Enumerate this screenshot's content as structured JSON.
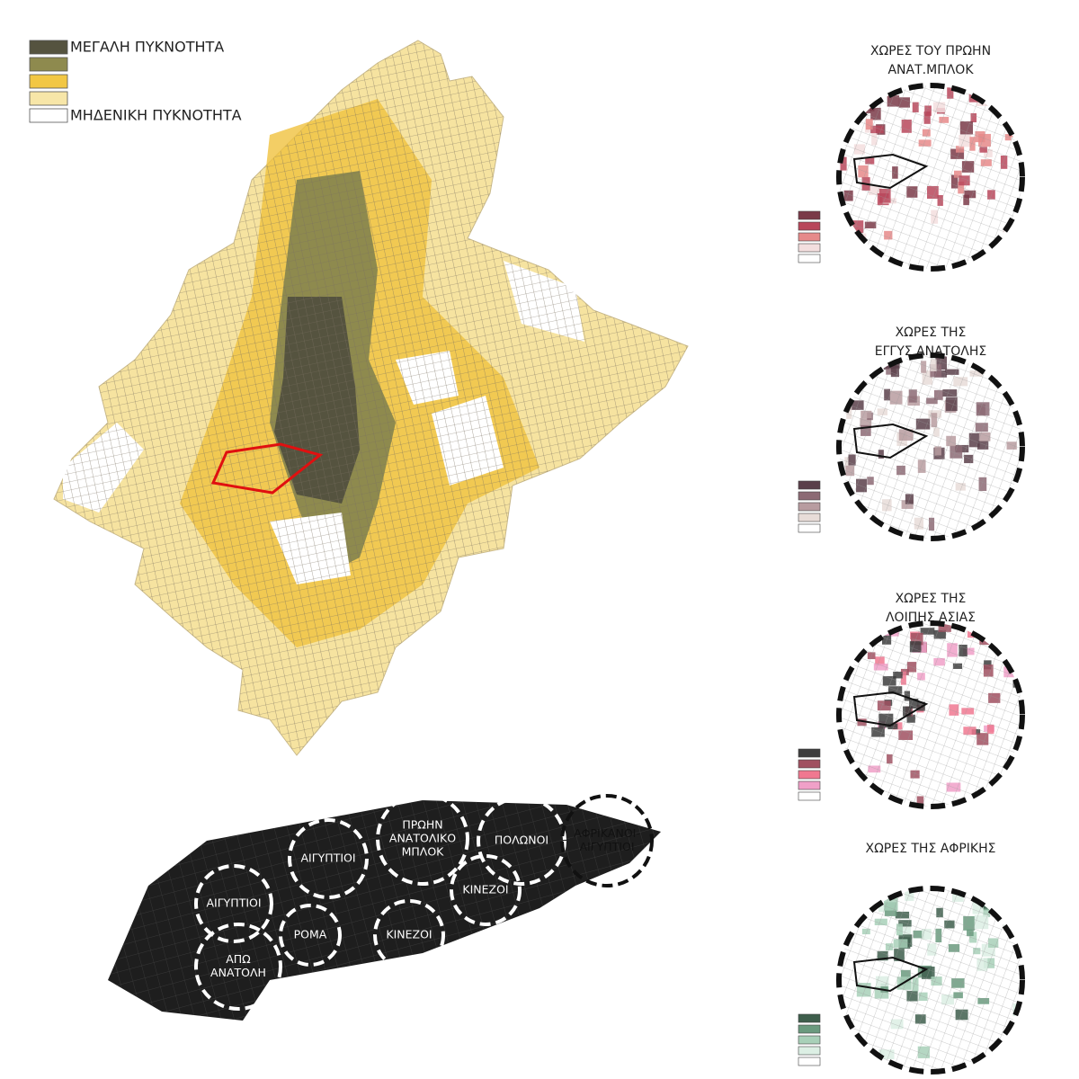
{
  "legend": {
    "items": [
      {
        "color": "#55533f",
        "label": "ΜΕΓΑΛΗ ΠΥΚΝΟΤΗΤΑ"
      },
      {
        "color": "#8e8a4e"
      },
      {
        "color": "#f2c744"
      },
      {
        "color": "#f7e6a8"
      },
      {
        "color": "#ffffff",
        "label": "ΜΗΔΕΝΙΚΗ ΠΥΚΝΟΤΗΤΑ"
      }
    ]
  },
  "panels": [
    {
      "title": [
        "ΧΩΡΕΣ ΤΟΥ ΠΡΩΗΝ",
        "ΑΝΑΤ.ΜΠΛΟΚ"
      ],
      "color": "#c0465a",
      "swatches": [
        "#7a3a48",
        "#b8465a",
        "#e68a8a",
        "#f3dede",
        "#ffffff"
      ]
    },
    {
      "title": [
        "ΧΩΡΕΣ ΤΗΣ",
        "ΕΓΓΥΣ ΑΝΑΤΟΛΗΣ"
      ],
      "color": "#6e4a58",
      "swatches": [
        "#5a3f4a",
        "#8c6a74",
        "#b89ca0",
        "#e8dcd8",
        "#ffffff"
      ]
    },
    {
      "title": [
        "ΧΩΡΕΣ ΤΗΣ",
        "ΛΟΙΠΗΣ ΑΣΙΑΣ"
      ],
      "color": "#c04a78",
      "swatches": [
        "#3d3d3d",
        "#a05060",
        "#f07890",
        "#f0a0c8",
        "#ffffff"
      ]
    },
    {
      "title": [
        "ΧΩΡΕΣ ΤΗΣ ΑΦΡΙΚΗΣ"
      ],
      "color": "#6a9a7e",
      "swatches": [
        "#3e5e4c",
        "#6a9a7e",
        "#a8d0b8",
        "#dcefe4",
        "#ffffff"
      ]
    }
  ],
  "areas": [
    {
      "label": [
        "ΑΙΓΥΠΤΙΟΙ"
      ]
    },
    {
      "label": [
        "ΑΠΩ",
        "ΑΝΑΤΟΛΗ"
      ]
    },
    {
      "label": [
        "ΡΟΜΑ"
      ]
    },
    {
      "label": [
        "ΑΙΓΥΠΤΙΟΙ"
      ]
    },
    {
      "label": [
        "ΠΡΩΗΝ",
        "ΑΝΑΤΟΛΙΚΟ",
        "ΜΠΛΟΚ"
      ]
    },
    {
      "label": [
        "ΚΙΝΕΖΟΙ"
      ]
    },
    {
      "label": [
        "ΚΙΝΕΖΟΙ"
      ]
    },
    {
      "label": [
        "ΠΟΛΩΝΟΙ"
      ]
    },
    {
      "label": [
        "ΑΦΡΙΚΑΝΟΙ-",
        "ΑΙΓΥΠΤΙΟΙ"
      ]
    }
  ]
}
